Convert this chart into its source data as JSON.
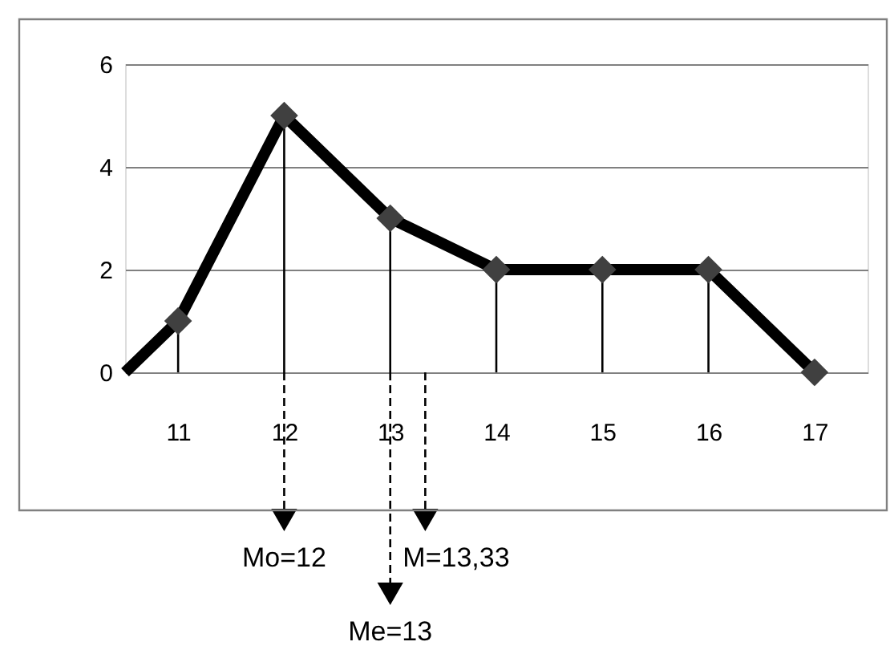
{
  "chart_data": {
    "type": "line",
    "xlim": [
      10.5,
      17.5
    ],
    "xticks": [
      11,
      12,
      13,
      14,
      15,
      16,
      17
    ],
    "ylim": [
      0,
      6
    ],
    "yticks": [
      0,
      2,
      4,
      6
    ],
    "grid": "y",
    "series": [
      {
        "color": "#000000",
        "marker": "none",
        "line_style": "solid",
        "x": [
          10.5,
          11,
          12,
          13,
          14,
          15,
          16,
          17
        ],
        "values": [
          0,
          1,
          5,
          3,
          2,
          2,
          2,
          0
        ]
      },
      {
        "type": "lollipop",
        "color": "#404040",
        "marker": "diamond",
        "x": [
          11,
          12,
          13,
          14,
          15,
          16,
          17
        ],
        "values": [
          1,
          5,
          3,
          2,
          2,
          2,
          0
        ]
      }
    ],
    "ref_lines": [
      {
        "axis": "x",
        "value": 12,
        "label": "Mo=12",
        "line_style": "dashed",
        "color": "#000000"
      },
      {
        "axis": "x",
        "value": 13,
        "label": "Me=13",
        "line_style": "dashed",
        "color": "#000000"
      },
      {
        "axis": "x",
        "value": 13.33,
        "label": "M=13,33",
        "line_style": "dashed",
        "color": "#000000"
      }
    ]
  }
}
